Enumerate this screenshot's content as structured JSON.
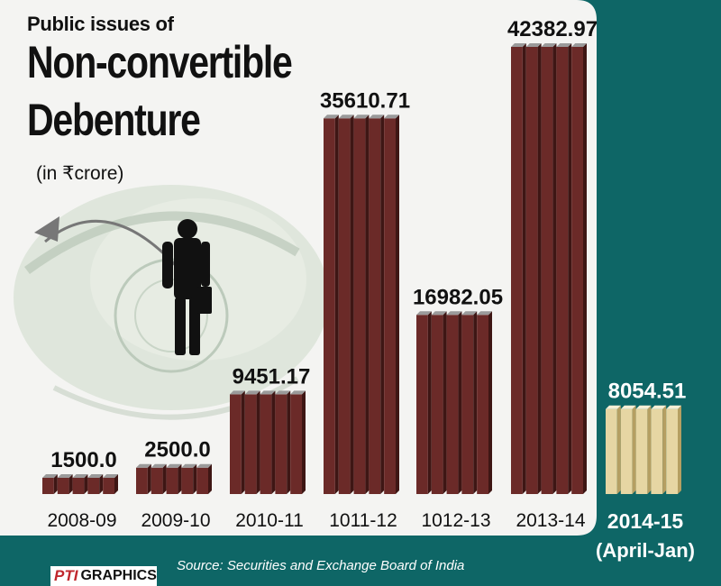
{
  "header": {
    "title_small": "Public issues of",
    "title_line1": "Non-convertible",
    "title_line2": "Debenture",
    "unit": "(in ₹crore)"
  },
  "footer": {
    "source": "Source: Securities and Exchange Board of India",
    "logo_pti": "PTI",
    "logo_graphics": "GRAPHICS"
  },
  "colors": {
    "background": "#0e6666",
    "panel": "#f4f4f2",
    "bar_front": "#6b2a28",
    "bar_top": "#9a9a9a",
    "bar_side": "#3e1614",
    "highlight_front": "#e6d6a3",
    "highlight_top": "#f6efd6",
    "highlight_side": "#b59f62",
    "value_label_dark": "#111111",
    "value_label_light": "#ffffff"
  },
  "chart_data": {
    "type": "bar",
    "categories": [
      "2008-09",
      "2009-10",
      "2010-11",
      "1011-12",
      "1012-13",
      "2013-14",
      "2014-15"
    ],
    "category_sublabels": [
      "",
      "",
      "",
      "",
      "",
      "",
      "(April-Jan)"
    ],
    "values": [
      1500.0,
      2500.0,
      9451.17,
      35610.71,
      16982.05,
      42382.97,
      8054.51
    ],
    "value_labels": [
      "1500.0",
      "2500.0",
      "9451.17",
      "35610.71",
      "16982.05",
      "42382.97",
      "8054.51"
    ],
    "highlighted_category": "2014-15",
    "ylim": [
      0,
      42382.97
    ],
    "grid": false,
    "legend": "none"
  }
}
